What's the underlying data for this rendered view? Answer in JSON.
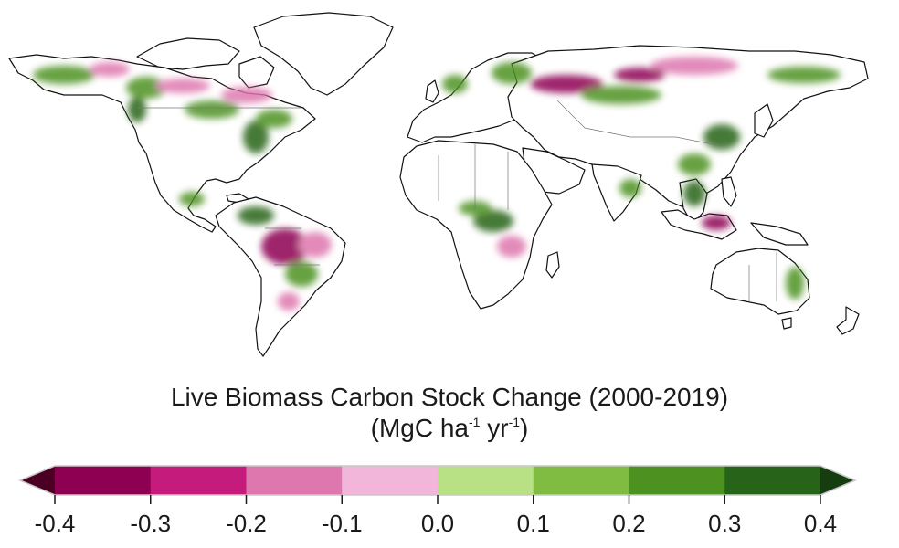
{
  "map": {
    "legend_title": "Live Biomass Carbon Stock Change (2000-2019)",
    "units_parts": [
      "(MgC ha",
      "-1",
      " yr",
      "-1",
      ")"
    ],
    "colorbar": {
      "bins": [
        {
          "from": null,
          "to": -0.4,
          "color": "#4b0023"
        },
        {
          "from": -0.4,
          "to": -0.3,
          "color": "#8e0152"
        },
        {
          "from": -0.3,
          "to": -0.2,
          "color": "#c51b7d"
        },
        {
          "from": -0.2,
          "to": -0.1,
          "color": "#de77ae"
        },
        {
          "from": -0.1,
          "to": 0.0,
          "color": "#f1b6da"
        },
        {
          "from": 0.0,
          "to": 0.1,
          "color": "#b8e186"
        },
        {
          "from": 0.1,
          "to": 0.2,
          "color": "#7fbc41"
        },
        {
          "from": 0.2,
          "to": 0.3,
          "color": "#4d9221"
        },
        {
          "from": 0.3,
          "to": 0.4,
          "color": "#276419"
        },
        {
          "from": 0.4,
          "to": null,
          "color": "#153d10"
        }
      ],
      "tick_values": [
        -0.4,
        -0.3,
        -0.2,
        -0.1,
        0.0,
        0.1,
        0.2,
        0.3,
        0.4
      ],
      "tick_labels": [
        "-0.4",
        "-0.3",
        "-0.2",
        "-0.1",
        "0.0",
        "0.1",
        "0.2",
        "0.3",
        "0.4"
      ]
    },
    "colors": {
      "land_fill": "#ffffff",
      "coastline": "#111111",
      "borders": "#777777",
      "gain": "#4d9221",
      "strong_gain": "#276419",
      "loss": "#de77ae",
      "strong_loss": "#8e0152"
    }
  }
}
